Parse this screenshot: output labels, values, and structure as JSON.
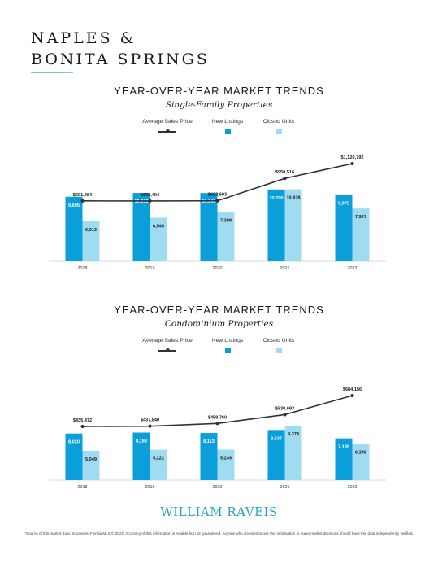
{
  "header": {
    "title_line1": "NAPLES &",
    "title_line2": "BONITA SPRINGS"
  },
  "legend": {
    "avg_price": "Average Sales Price",
    "new_listings": "New Listings",
    "closed_units": "Closed Units"
  },
  "colors": {
    "new_listings": "#0a9fda",
    "closed_units": "#9fdcf2",
    "avg_line": "#333333",
    "accent": "#24a3c4"
  },
  "chart_data": [
    {
      "type": "bar",
      "title": "YEAR-OVER-YEAR MARKET TRENDS",
      "subtitle": "Single-Family Properties",
      "categories": [
        "2018",
        "2019",
        "2020",
        "2021",
        "2022"
      ],
      "series": [
        {
          "name": "New Listings",
          "values": [
            9695,
            10263,
            10248,
            10790,
            9975
          ],
          "labels": [
            "9,695",
            "10,263",
            "10,248",
            "10,790",
            "9,975"
          ]
        },
        {
          "name": "Closed Units",
          "values": [
            6013,
            6549,
            7389,
            10818,
            7927
          ],
          "labels": [
            "6,013",
            "6,549",
            "7,389",
            "10,818",
            "7,927"
          ]
        },
        {
          "name": "Average Sales Price",
          "kind": "line",
          "values": [
            691464,
            690494,
            692693,
            950516,
            1120792
          ],
          "labels": [
            "$691,464",
            "$690,494",
            "$692,693",
            "$950,516",
            "$1,120,792"
          ]
        }
      ],
      "grid": false,
      "legend_position": "top"
    },
    {
      "type": "bar",
      "title": "YEAR-OVER-YEAR MARKET TRENDS",
      "subtitle": "Condominium Properties",
      "categories": [
        "2018",
        "2019",
        "2020",
        "2021",
        "2022"
      ],
      "series": [
        {
          "name": "New Listings",
          "values": [
            8020,
            8188,
            8113,
            8637,
            7189
          ],
          "labels": [
            "8,020",
            "8,188",
            "8,113",
            "8,637",
            "7,189"
          ]
        },
        {
          "name": "Closed Units",
          "values": [
            5049,
            5222,
            5249,
            9374,
            6248
          ],
          "labels": [
            "5,049",
            "5,222",
            "5,249",
            "9,374",
            "6,248"
          ]
        },
        {
          "name": "Average Sales Price",
          "kind": "line",
          "values": [
            435472,
            437840,
            459760,
            530693,
            684156
          ],
          "labels": [
            "$435,472",
            "$437,840",
            "$459,760",
            "$530,693",
            "$684,156"
          ]
        }
      ],
      "grid": false,
      "legend_position": "top"
    }
  ],
  "footer": {
    "logo": "WILLIAM RAVEIS",
    "footnote": "*Source of this market data: Southwest Florida MLS © 2022. Accuracy of this information is reliable but not guaranteed. Anyone who chooses to use this information to make market decisions should have this data independently verified."
  }
}
